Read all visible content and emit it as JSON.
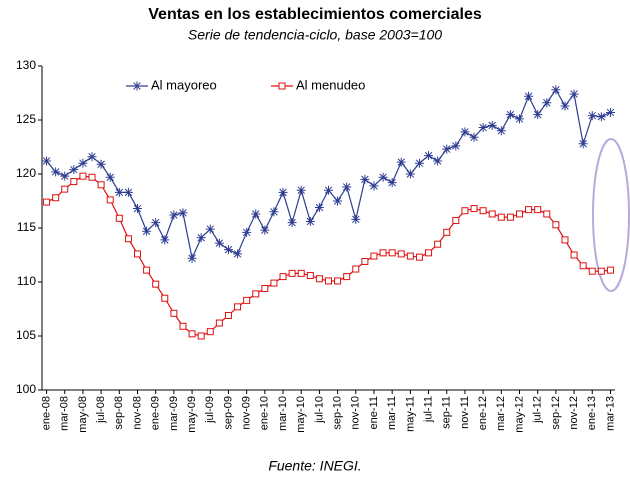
{
  "chart_data": {
    "type": "line",
    "title": "Ventas en los establecimientos comerciales",
    "subtitle": "Serie de tendencia-ciclo, base 2003=100",
    "source": "Fuente: INEGI.",
    "categories": [
      "ene-08",
      null,
      "mar-08",
      null,
      "may-08",
      null,
      "jul-08",
      null,
      "sep-08",
      null,
      "nov-08",
      null,
      "ene-09",
      null,
      "mar-09",
      null,
      "may-09",
      null,
      "jul-09",
      null,
      "sep-09",
      null,
      "nov-09",
      null,
      "ene-10",
      null,
      "mar-10",
      null,
      "may-10",
      null,
      "jul-10",
      null,
      "sep-10",
      null,
      "nov-10",
      null,
      "ene-11",
      null,
      "mar-11",
      null,
      "may-11",
      null,
      "jul-11",
      null,
      "sep-11",
      null,
      "nov-11",
      null,
      "ene-12",
      null,
      "mar-12",
      null,
      "may-12",
      null,
      "jul-12",
      null,
      "sep-12",
      null,
      "nov-12",
      null,
      "ene-13",
      null,
      "mar-13"
    ],
    "series": [
      {
        "name": "Al mayoreo",
        "color": "#2e3d91",
        "values": [
          121.2,
          120.2,
          119.8,
          120.4,
          121.0,
          121.6,
          120.9,
          119.7,
          118.3,
          118.3,
          116.8,
          114.7,
          115.5,
          113.9,
          116.2,
          116.4,
          112.2,
          114.1,
          114.9,
          113.6,
          113.0,
          112.6,
          114.6,
          116.3,
          114.8,
          116.5,
          118.3,
          115.5,
          118.5,
          115.6,
          116.9,
          118.5,
          117.5,
          118.8,
          115.8,
          119.5,
          118.9,
          119.7,
          119.2,
          121.1,
          120.0,
          121.0,
          121.7,
          121.2,
          122.3,
          122.6,
          123.9,
          123.4,
          124.3,
          124.5,
          124.0,
          125.5,
          125.1,
          127.2,
          125.5,
          126.6,
          127.8,
          126.3,
          127.4,
          122.8,
          125.4,
          125.3,
          125.7
        ]
      },
      {
        "name": "Al menudeo",
        "color": "#dd1111",
        "values": [
          117.4,
          117.8,
          118.6,
          119.3,
          119.8,
          119.7,
          119.0,
          117.6,
          115.9,
          114.0,
          112.6,
          111.1,
          109.8,
          108.5,
          107.1,
          105.9,
          105.2,
          105.0,
          105.4,
          106.2,
          106.9,
          107.7,
          108.3,
          108.9,
          109.4,
          109.9,
          110.5,
          110.8,
          110.8,
          110.6,
          110.3,
          110.1,
          110.1,
          110.5,
          111.2,
          111.9,
          112.4,
          112.7,
          112.7,
          112.6,
          112.4,
          112.3,
          112.7,
          113.5,
          114.6,
          115.7,
          116.6,
          116.8,
          116.6,
          116.3,
          116.0,
          116.0,
          116.3,
          116.7,
          116.7,
          116.3,
          115.3,
          113.9,
          112.5,
          111.5,
          111.0,
          111.0,
          111.1
        ]
      }
    ],
    "ylim": [
      100,
      130
    ],
    "yticks": [
      100,
      105,
      110,
      115,
      120,
      125,
      130
    ],
    "grid": false
  }
}
